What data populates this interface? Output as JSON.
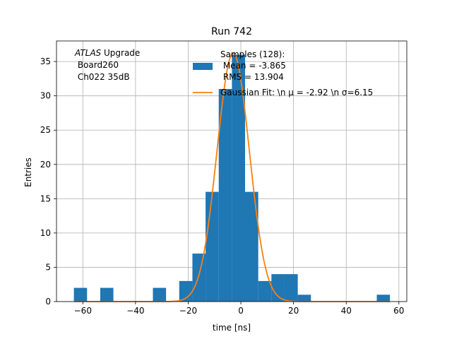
{
  "chart_data": {
    "type": "bar",
    "title": "Run 742",
    "xlabel": "time [ns]",
    "ylabel": "Entries",
    "xlim": [
      -70,
      63
    ],
    "ylim": [
      0,
      38
    ],
    "xticks": [
      -60,
      -40,
      -20,
      0,
      20,
      40,
      60
    ],
    "yticks": [
      0,
      5,
      10,
      15,
      20,
      25,
      30,
      35
    ],
    "grid": true,
    "annotation": {
      "line1_italic": "ATLAS",
      "line1_rest": " Upgrade",
      "line2": " Board260",
      "line3": " Ch022 35dB"
    },
    "legend": {
      "position": "top-right",
      "hist_label_lines": [
        "Samples (128):",
        " Mean = -3.865",
        " RMS = 13.904"
      ],
      "fit_label": "Gaussian Fit: \\n μ = -2.92 \\n σ=6.15"
    },
    "histogram": {
      "name": "Samples (128)",
      "color": "#1f77b4",
      "bin_edges": [
        -63.4,
        -58.4,
        -53.4,
        -48.4,
        -43.4,
        -38.4,
        -33.4,
        -28.4,
        -23.4,
        -18.4,
        -13.4,
        -8.4,
        -3.4,
        1.6,
        6.6,
        11.6,
        16.6,
        21.6,
        26.6,
        31.6,
        36.6,
        41.6,
        46.6,
        51.6,
        56.6
      ],
      "counts": [
        2,
        0,
        2,
        0,
        0,
        0,
        2,
        0,
        3,
        7,
        16,
        31,
        36,
        16,
        3,
        4,
        4,
        1,
        0,
        0,
        0,
        0,
        0,
        1
      ]
    },
    "fit": {
      "name": "Gaussian Fit",
      "color": "#ff7f0e",
      "mu": -2.92,
      "sigma": 6.15,
      "amplitude": 36.2,
      "x_range": [
        -63.4,
        56.6
      ]
    }
  }
}
